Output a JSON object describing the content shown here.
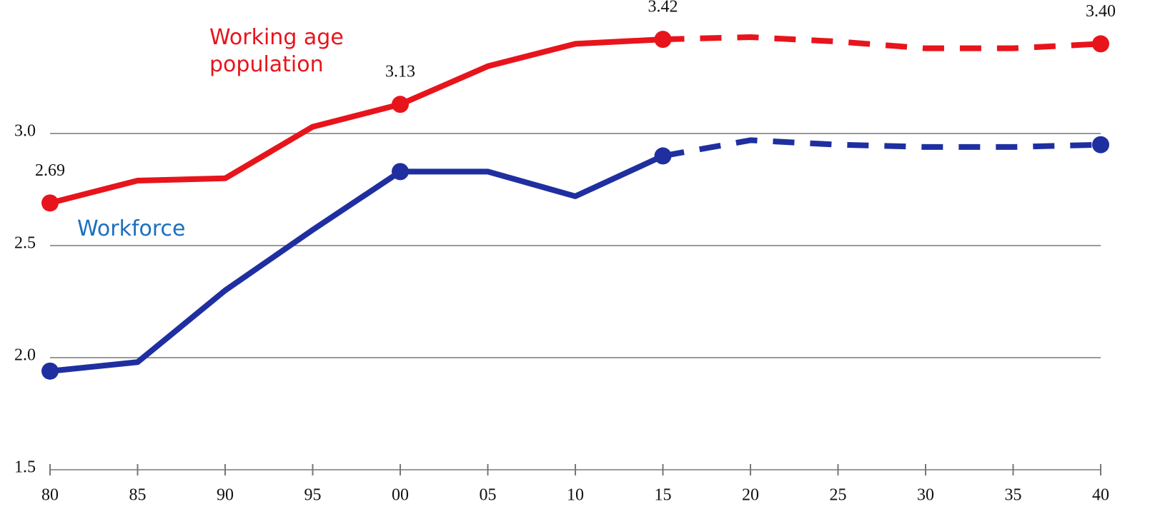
{
  "chart_data": {
    "type": "line",
    "x": [
      1980,
      1985,
      1990,
      1995,
      2000,
      2005,
      2010,
      2015,
      2020,
      2025,
      2030,
      2035,
      2040
    ],
    "series": [
      {
        "name": "Working age population",
        "color": "#e8141c",
        "values": [
          2.69,
          2.79,
          2.8,
          3.03,
          3.13,
          3.3,
          3.4,
          3.42,
          3.43,
          3.41,
          3.38,
          3.38,
          3.4
        ],
        "value_labels": [
          "2.69",
          null,
          null,
          null,
          "3.13",
          null,
          null,
          "3.42",
          null,
          null,
          null,
          null,
          "3.40"
        ],
        "markers": [
          0,
          4,
          7,
          12
        ]
      },
      {
        "name": "Workforce",
        "color": "#1f2fa0",
        "values": [
          1.94,
          1.98,
          2.3,
          2.57,
          2.83,
          2.83,
          2.72,
          2.9,
          2.97,
          2.95,
          2.94,
          2.94,
          2.95
        ],
        "markers": [
          0,
          4,
          7,
          12
        ]
      }
    ],
    "dashed_from_x": 2015,
    "xlim": [
      1980,
      2040
    ],
    "xticks": [
      {
        "value": 1980,
        "label": "80"
      },
      {
        "value": 1985,
        "label": "85"
      },
      {
        "value": 1990,
        "label": "90"
      },
      {
        "value": 1995,
        "label": "95"
      },
      {
        "value": 2000,
        "label": "00"
      },
      {
        "value": 2005,
        "label": "05"
      },
      {
        "value": 2010,
        "label": "10"
      },
      {
        "value": 2015,
        "label": "15"
      },
      {
        "value": 2020,
        "label": "20"
      },
      {
        "value": 2025,
        "label": "25"
      },
      {
        "value": 2030,
        "label": "30"
      },
      {
        "value": 2035,
        "label": "35"
      },
      {
        "value": 2040,
        "label": "40"
      }
    ],
    "ylim": [
      1.5,
      3.57
    ],
    "yticks": [
      {
        "value": 1.5,
        "label": "1.5"
      },
      {
        "value": 2.0,
        "label": "2.0"
      },
      {
        "value": 2.5,
        "label": "2.5"
      },
      {
        "value": 3.0,
        "label": "3.0"
      }
    ],
    "grid": true
  }
}
